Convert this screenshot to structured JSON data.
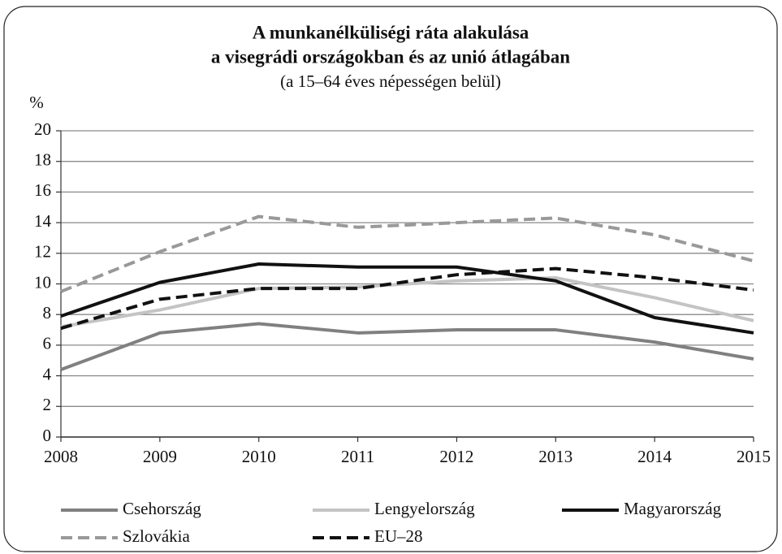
{
  "chart_data": {
    "type": "line",
    "title": [
      "A munkanélküliségi ráta alakulása",
      "a visegrádi országokban és az unió átlagában"
    ],
    "subtitle": "(a 15–64 éves népességen belül)",
    "y_label": "%",
    "x": [
      2008,
      2009,
      2010,
      2011,
      2012,
      2013,
      2014,
      2015
    ],
    "xlim": [
      2008,
      2015
    ],
    "xticks": [
      2008,
      2009,
      2010,
      2011,
      2012,
      2013,
      2014,
      2015
    ],
    "ylim": [
      0,
      20
    ],
    "yticks": [
      0,
      2,
      4,
      6,
      8,
      10,
      12,
      14,
      16,
      18,
      20
    ],
    "grid": true,
    "legend": "bottom",
    "series": [
      {
        "name": "Csehország",
        "color": "#808080",
        "line_style": "solid",
        "values": [
          4.4,
          6.8,
          7.4,
          6.8,
          7.0,
          7.0,
          6.2,
          5.1
        ]
      },
      {
        "name": "Lengyelország",
        "color": "#c4c4c4",
        "line_style": "solid",
        "values": [
          7.2,
          8.3,
          9.7,
          9.8,
          10.2,
          10.4,
          9.1,
          7.6
        ]
      },
      {
        "name": "Magyarország",
        "color": "#111111",
        "line_style": "solid",
        "values": [
          7.9,
          10.1,
          11.3,
          11.1,
          11.1,
          10.2,
          7.8,
          6.8
        ]
      },
      {
        "name": "Szlovákia",
        "color": "#999999",
        "line_style": "dashed",
        "values": [
          9.5,
          12.1,
          14.4,
          13.7,
          14.0,
          14.3,
          13.2,
          11.5
        ]
      },
      {
        "name": "EU–28",
        "color": "#111111",
        "line_style": "dashed",
        "values": [
          7.1,
          9.0,
          9.7,
          9.7,
          10.6,
          11.0,
          10.4,
          9.6
        ]
      }
    ]
  }
}
